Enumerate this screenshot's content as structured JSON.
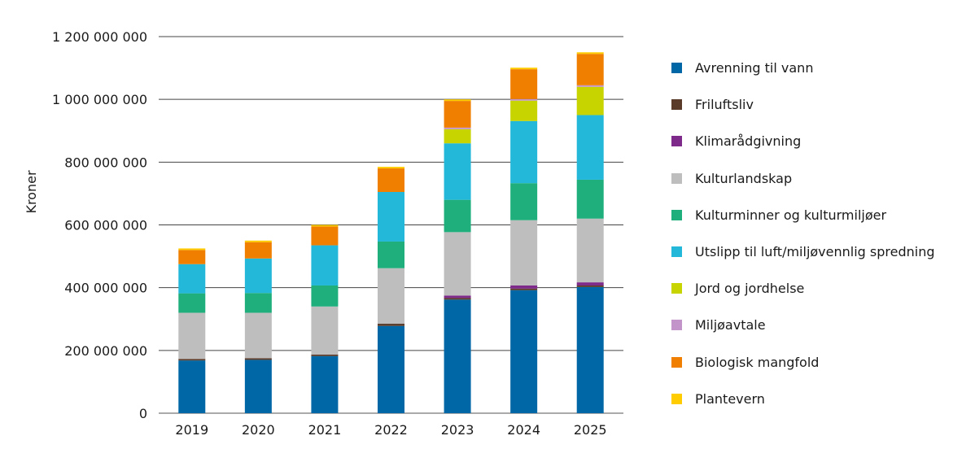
{
  "chart_data": {
    "type": "bar",
    "stacked": true,
    "ylabel": "Kroner",
    "xlabel": "",
    "title": "",
    "ylim": [
      0,
      1200000000
    ],
    "yticks": [
      "0",
      "200 000 000",
      "400 000 000",
      "600 000 000",
      "800 000 000",
      "1 000 000 000",
      "1 200 000 000"
    ],
    "ytick_values": [
      0,
      200000000,
      400000000,
      600000000,
      800000000,
      1000000000,
      1200000000
    ],
    "grid": true,
    "legend_position": "right",
    "categories": [
      "2019",
      "2020",
      "2021",
      "2022",
      "2023",
      "2024",
      "2025"
    ],
    "series": [
      {
        "name": "Avrenning til vann",
        "color": "#0067a6",
        "values": [
          168000000,
          170000000,
          182000000,
          278000000,
          362000000,
          392000000,
          402000000
        ]
      },
      {
        "name": "Friluftsliv",
        "color": "#5a3a28",
        "values": [
          5000000,
          5000000,
          5000000,
          7000000,
          5000000,
          5000000,
          5000000
        ]
      },
      {
        "name": "Klimarådgivning",
        "color": "#7e2a8a",
        "values": [
          0,
          0,
          0,
          0,
          8000000,
          10000000,
          10000000
        ]
      },
      {
        "name": "Kulturlandskap",
        "color": "#bebebe",
        "values": [
          147000000,
          145000000,
          153000000,
          177000000,
          202000000,
          208000000,
          203000000
        ]
      },
      {
        "name": "Kulturminner og kulturmiljøer",
        "color": "#1faf7c",
        "values": [
          62000000,
          63000000,
          67000000,
          85000000,
          103000000,
          118000000,
          124000000
        ]
      },
      {
        "name": "Utslipp til luft/miljøvennlig spredning",
        "color": "#23b7d9",
        "values": [
          93000000,
          110000000,
          128000000,
          158000000,
          180000000,
          198000000,
          206000000
        ]
      },
      {
        "name": "Jord og jordhelse",
        "color": "#c7d400",
        "values": [
          0,
          0,
          0,
          0,
          45000000,
          65000000,
          90000000
        ]
      },
      {
        "name": "Miljøavtale",
        "color": "#c394c9",
        "values": [
          0,
          0,
          0,
          0,
          5000000,
          5000000,
          5000000
        ]
      },
      {
        "name": "Biologisk mangfold",
        "color": "#f07f00",
        "values": [
          45000000,
          52000000,
          60000000,
          75000000,
          85000000,
          95000000,
          100000000
        ]
      },
      {
        "name": "Plantevern",
        "color": "#ffcc00",
        "values": [
          5000000,
          5000000,
          5000000,
          5000000,
          5000000,
          5000000,
          5000000
        ]
      }
    ]
  }
}
